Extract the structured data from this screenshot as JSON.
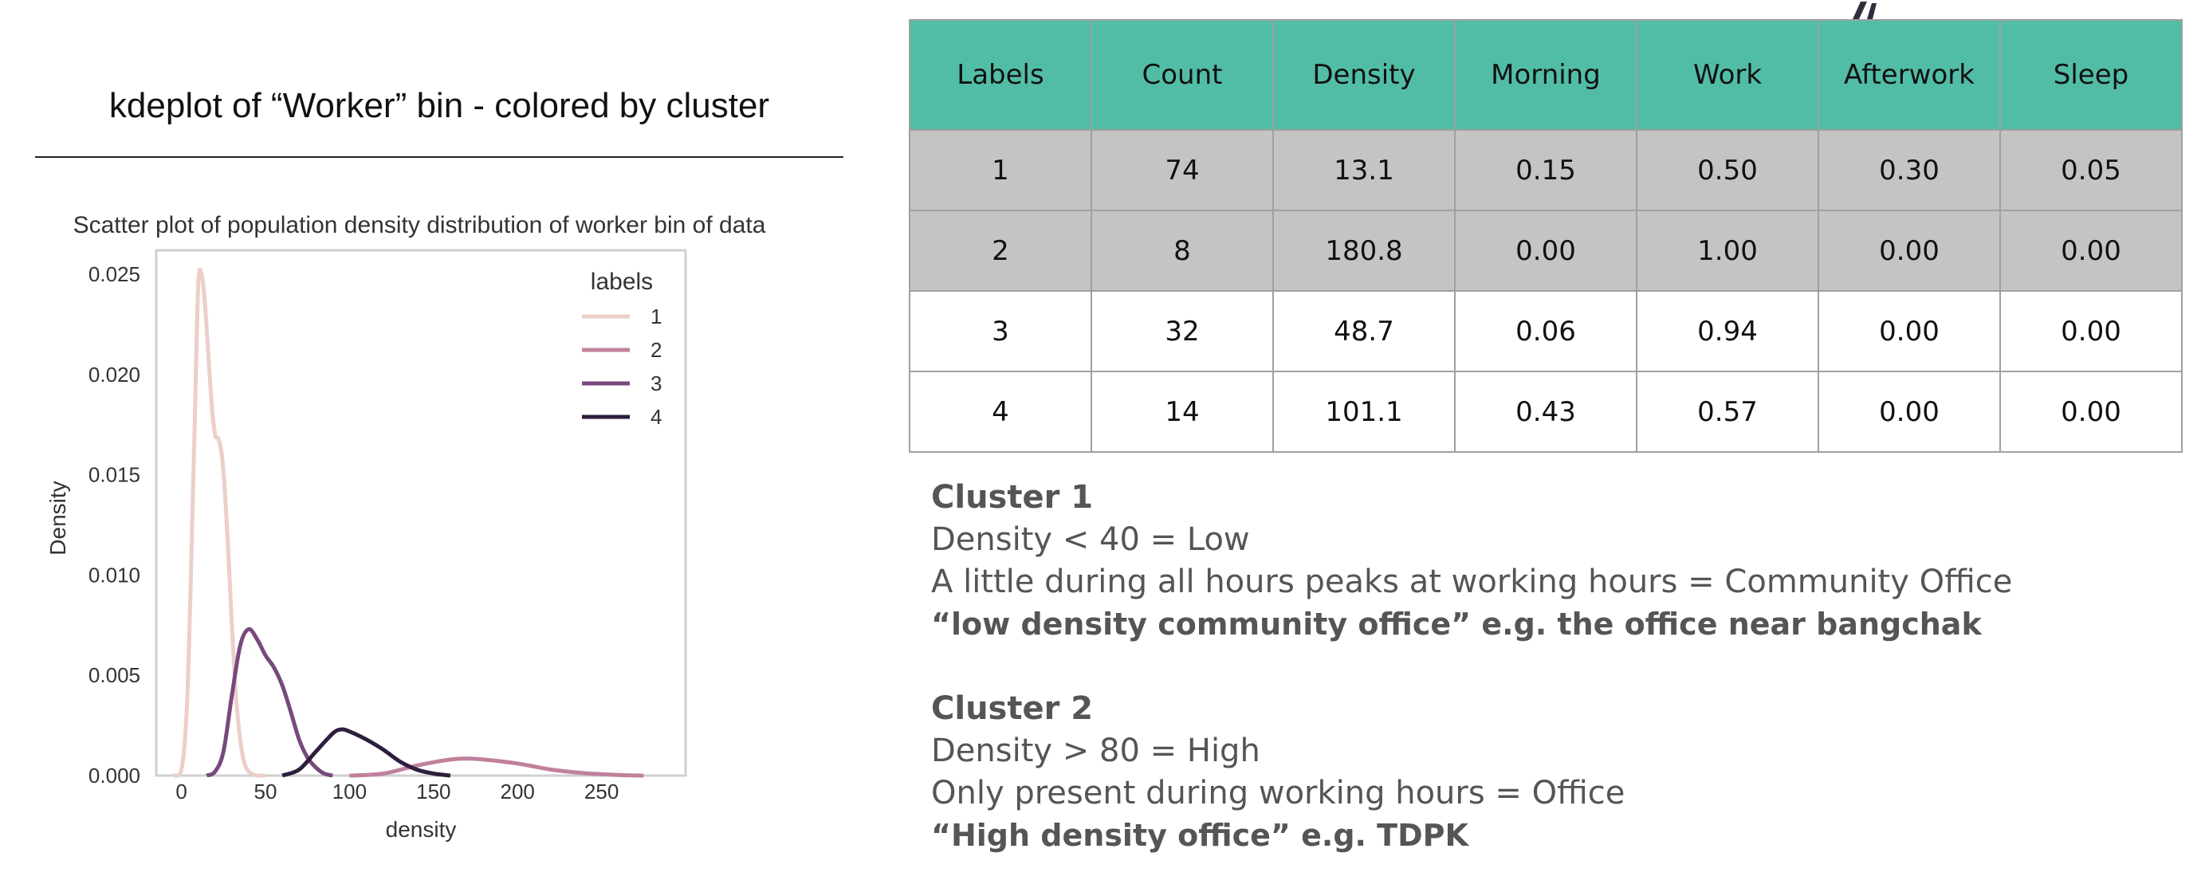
{
  "slide": {
    "title": "kdeplot of “Worker” bin - colored by cluster"
  },
  "chart_data": {
    "type": "line",
    "title": "Scatter plot of population density distribution of worker bin of data",
    "xlabel": "density",
    "ylabel": "Density",
    "xlim": [
      -15,
      300
    ],
    "ylim": [
      0,
      0.0262
    ],
    "x_ticks": [
      "0",
      "50",
      "100",
      "150",
      "200",
      "250"
    ],
    "x_tick_values": [
      0,
      50,
      100,
      150,
      200,
      250
    ],
    "y_ticks": [
      "0.000",
      "0.005",
      "0.010",
      "0.015",
      "0.020",
      "0.025"
    ],
    "y_tick_values": [
      0,
      0.005,
      0.01,
      0.015,
      0.02,
      0.025
    ],
    "grid": false,
    "legend": {
      "title": "labels",
      "position": "top-right"
    },
    "series": [
      {
        "name": "1",
        "color": "#ebcfc8",
        "x": [
          -5,
          0,
          3,
          5,
          8,
          10,
          12,
          14,
          16,
          18,
          20,
          22,
          24,
          26,
          28,
          30,
          32,
          34,
          36,
          38,
          40,
          43,
          46,
          50
        ],
        "y": [
          0,
          0.0003,
          0.003,
          0.008,
          0.018,
          0.0245,
          0.025,
          0.0235,
          0.021,
          0.0185,
          0.017,
          0.0168,
          0.016,
          0.014,
          0.011,
          0.0075,
          0.0045,
          0.0025,
          0.0012,
          0.0005,
          0.0002,
          5e-05,
          0,
          0
        ]
      },
      {
        "name": "2",
        "color": "#c0819c",
        "x": [
          100,
          120,
          140,
          160,
          170,
          180,
          200,
          220,
          240,
          260,
          275
        ],
        "y": [
          0,
          0.0001,
          0.0005,
          0.0008,
          0.00085,
          0.0008,
          0.0006,
          0.0003,
          0.00012,
          3e-05,
          0
        ]
      },
      {
        "name": "3",
        "color": "#78497c",
        "x": [
          15,
          20,
          25,
          30,
          35,
          40,
          45,
          50,
          55,
          60,
          65,
          70,
          75,
          80,
          85,
          90
        ],
        "y": [
          0,
          0.0002,
          0.0012,
          0.004,
          0.0065,
          0.0073,
          0.0068,
          0.006,
          0.0054,
          0.0045,
          0.0032,
          0.0018,
          0.0009,
          0.0004,
          0.0001,
          0
        ]
      },
      {
        "name": "4",
        "color": "#2e1e3e",
        "x": [
          60,
          70,
          80,
          90,
          95,
          100,
          110,
          120,
          130,
          140,
          150,
          160
        ],
        "y": [
          0,
          0.0003,
          0.0012,
          0.0021,
          0.0023,
          0.0022,
          0.0018,
          0.0013,
          0.0007,
          0.0003,
          0.0001,
          0
        ]
      }
    ]
  },
  "table": {
    "headers": [
      "Labels",
      "Count",
      "Density",
      "Morning",
      "Work",
      "Afterwork",
      "Sleep"
    ],
    "rows": [
      [
        "1",
        "74",
        "13.1",
        "0.15",
        "0.50",
        "0.30",
        "0.05"
      ],
      [
        "2",
        "8",
        "180.8",
        "0.00",
        "1.00",
        "0.00",
        "0.00"
      ],
      [
        "3",
        "32",
        "48.7",
        "0.06",
        "0.94",
        "0.00",
        "0.00"
      ],
      [
        "4",
        "14",
        "101.1",
        "0.43",
        "0.57",
        "0.00",
        "0.00"
      ]
    ]
  },
  "notes": {
    "cluster1": {
      "heading": "Cluster 1",
      "line1": "Density < 40 = Low",
      "line2": "A little during all hours peaks at working hours = Community Office",
      "tagline": "“low density community office” e.g. the office near bangchak"
    },
    "cluster2": {
      "heading": "Cluster 2",
      "line1": "Density > 80  = High",
      "line2": "Only present during working hours = Office",
      "tagline": "“High density office” e.g. TDPK"
    }
  },
  "decor": {
    "icon": "person-figure-icon",
    "color": "#2e2e3e"
  }
}
